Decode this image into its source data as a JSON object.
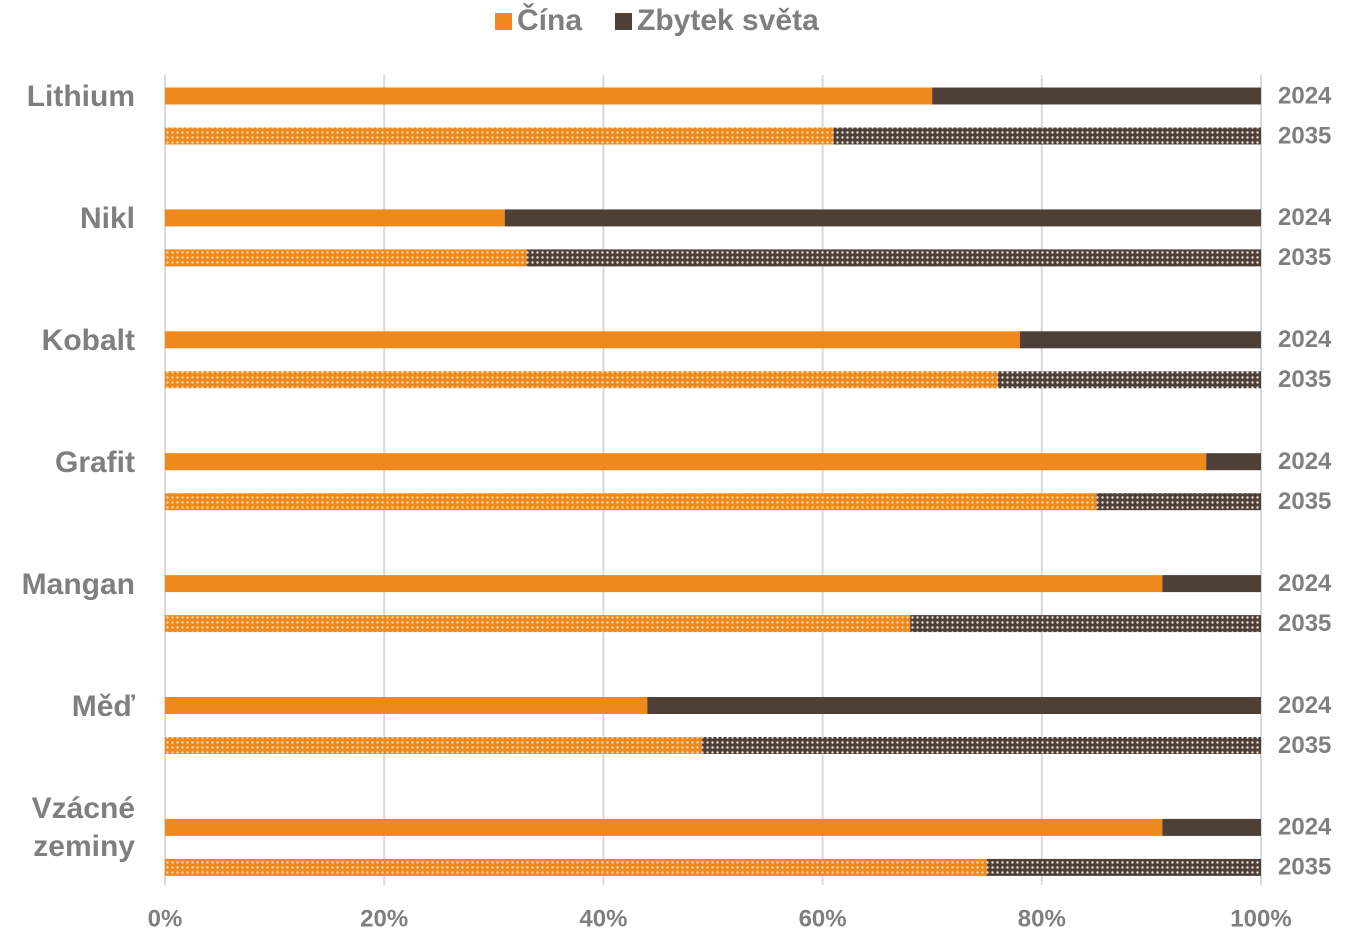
{
  "chart_data": {
    "type": "stacked_bar_horizontal",
    "groups": [
      "Lithium",
      "Nikl",
      "Kobalt",
      "Grafit",
      "Mangan",
      "Měď",
      "Vzácné zeminy"
    ],
    "categories": [
      "2024",
      "2035",
      "2024",
      "2035",
      "2024",
      "2035",
      "2024",
      "2035",
      "2024",
      "2035",
      "2024",
      "2035",
      "2024",
      "2035"
    ],
    "series": [
      {
        "name": "Čína",
        "color": "#f0891b",
        "values": [
          70,
          61,
          31,
          33,
          78,
          76,
          95,
          85,
          91,
          68,
          44,
          49,
          91,
          75
        ]
      },
      {
        "name": "Zbytek světa",
        "color": "#4f4037",
        "values": [
          30,
          39,
          69,
          67,
          22,
          24,
          5,
          15,
          9,
          32,
          56,
          51,
          9,
          25
        ]
      }
    ],
    "xlim": [
      0,
      100
    ],
    "xticks": [
      {
        "value": 0,
        "label": "0%"
      },
      {
        "value": 20,
        "label": "20%"
      },
      {
        "value": 40,
        "label": "40%"
      },
      {
        "value": 60,
        "label": "60%"
      },
      {
        "value": 80,
        "label": "80%"
      },
      {
        "value": 100,
        "label": "100%"
      }
    ],
    "grid": true,
    "legend": "top"
  }
}
